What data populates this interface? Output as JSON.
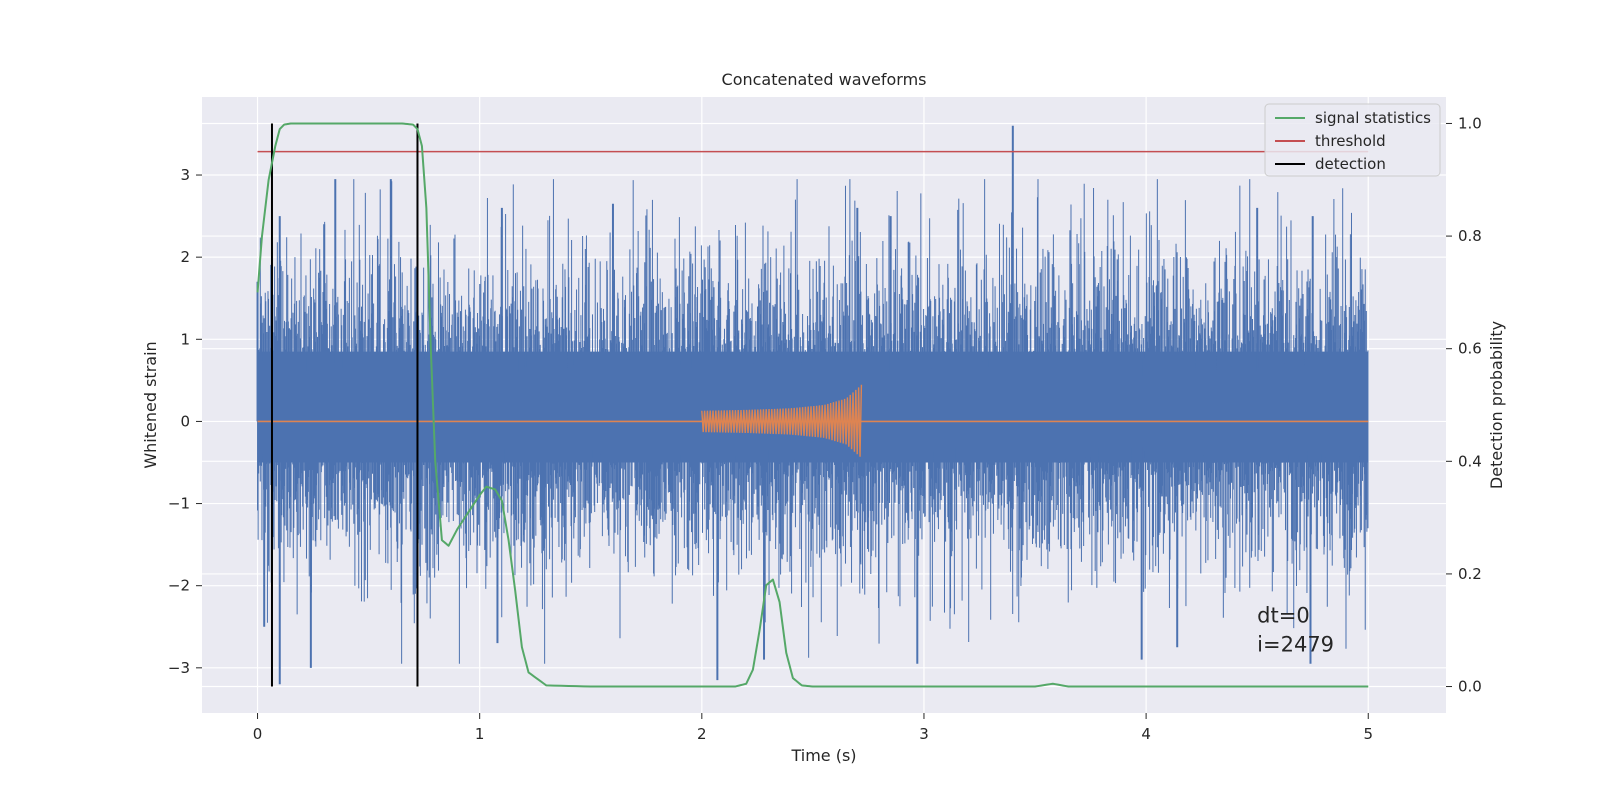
{
  "chart_data": {
    "type": "line",
    "title": "Concatenated waveforms",
    "xlabel": "Time (s)",
    "ylabel": "Whitened strain",
    "ylabel_right": "Detection probability",
    "xlim": [
      -0.25,
      5.35
    ],
    "ylim": [
      -3.55,
      3.95
    ],
    "ylim_right": [
      -0.047,
      1.047
    ],
    "xticks": [
      0,
      1,
      2,
      3,
      4,
      5
    ],
    "xtick_labels": [
      "0",
      "1",
      "2",
      "3",
      "4",
      "5"
    ],
    "yticks": [
      -3,
      -2,
      -1,
      0,
      1,
      2,
      3
    ],
    "ytick_labels": [
      "−3",
      "−2",
      "−1",
      "0",
      "1",
      "2",
      "3"
    ],
    "yticks_right": [
      0.0,
      0.2,
      0.4,
      0.6,
      0.8,
      1.0
    ],
    "ytick_right_labels": [
      "0.0",
      "0.2",
      "0.4",
      "0.6",
      "0.8",
      "1.0"
    ],
    "grid": true,
    "legend_position": "top-right",
    "colors": {
      "strain": "#4c72b0",
      "injection": "#dd8452",
      "signal_statistics": "#55a868",
      "threshold": "#c44e52",
      "detection": "#000000",
      "background": "#eaeaf2",
      "grid": "#ffffff"
    },
    "series": [
      {
        "name": "",
        "axis": "left",
        "kind": "noise-band",
        "x_range": [
          0,
          5
        ],
        "core_band": [
          -0.5,
          0.85
        ],
        "peaks": [
          {
            "x": 0.0,
            "y": 1.7
          },
          {
            "x": 0.1,
            "y": 2.5
          },
          {
            "x": 0.3,
            "y": 2.4
          },
          {
            "x": 0.35,
            "y": 2.95
          },
          {
            "x": 0.6,
            "y": 2.95
          },
          {
            "x": 1.1,
            "y": 2.6
          },
          {
            "x": 1.6,
            "y": 2.65
          },
          {
            "x": 2.7,
            "y": 2.6
          },
          {
            "x": 2.85,
            "y": 2.5
          },
          {
            "x": 3.4,
            "y": 3.6
          },
          {
            "x": 4.5,
            "y": 2.6
          },
          {
            "x": 4.75,
            "y": 2.5
          }
        ],
        "troughs": [
          {
            "x": 0.03,
            "y": -2.5
          },
          {
            "x": 0.1,
            "y": -3.2
          },
          {
            "x": 0.24,
            "y": -3.0
          },
          {
            "x": 1.08,
            "y": -2.7
          },
          {
            "x": 2.07,
            "y": -3.15
          },
          {
            "x": 2.28,
            "y": -2.9
          },
          {
            "x": 2.97,
            "y": -2.95
          },
          {
            "x": 3.98,
            "y": -2.9
          },
          {
            "x": 4.14,
            "y": -2.75
          },
          {
            "x": 4.74,
            "y": -2.95
          }
        ]
      },
      {
        "name": "",
        "axis": "left",
        "kind": "chirp",
        "x": [
          2.0,
          2.72
        ],
        "flat": [
          0.0,
          0.0
        ],
        "envelope": [
          {
            "x": 2.0,
            "y": 0.13
          },
          {
            "x": 2.2,
            "y": 0.14
          },
          {
            "x": 2.4,
            "y": 0.16
          },
          {
            "x": 2.55,
            "y": 0.2
          },
          {
            "x": 2.65,
            "y": 0.28
          },
          {
            "x": 2.7,
            "y": 0.4
          },
          {
            "x": 2.72,
            "y": 0.45
          }
        ]
      },
      {
        "name": "signal statistics",
        "axis": "right",
        "x": [
          0.0,
          0.02,
          0.05,
          0.08,
          0.1,
          0.12,
          0.15,
          0.2,
          0.3,
          0.5,
          0.65,
          0.7,
          0.72,
          0.74,
          0.76,
          0.78,
          0.8,
          0.83,
          0.86,
          0.9,
          0.95,
          1.0,
          1.03,
          1.07,
          1.1,
          1.13,
          1.16,
          1.19,
          1.22,
          1.3,
          1.5,
          2.0,
          2.15,
          2.2,
          2.23,
          2.26,
          2.29,
          2.32,
          2.35,
          2.38,
          2.41,
          2.45,
          2.5,
          3.0,
          3.5,
          3.58,
          3.65,
          4.0,
          5.0
        ],
        "values": [
          0.7,
          0.8,
          0.9,
          0.96,
          0.99,
          0.998,
          1.0,
          1.0,
          1.0,
          1.0,
          1.0,
          0.998,
          0.99,
          0.96,
          0.85,
          0.6,
          0.4,
          0.26,
          0.25,
          0.28,
          0.31,
          0.34,
          0.355,
          0.35,
          0.33,
          0.26,
          0.17,
          0.07,
          0.025,
          0.002,
          0.0,
          0.0,
          0.0,
          0.005,
          0.03,
          0.1,
          0.18,
          0.19,
          0.15,
          0.06,
          0.015,
          0.002,
          0.0,
          0.0,
          0.0,
          0.005,
          0.0,
          0.0,
          0.0
        ]
      },
      {
        "name": "threshold",
        "axis": "right",
        "x": [
          0.0,
          5.0
        ],
        "values": [
          0.95,
          0.95
        ]
      },
      {
        "name": "detection",
        "axis": "right",
        "x_positions": [
          0.065,
          0.72
        ],
        "y_range": [
          0.0,
          1.0
        ]
      }
    ],
    "annotations": [
      {
        "id": "dt",
        "text": "dt=0",
        "x": 4.5,
        "y": -2.45
      },
      {
        "id": "i",
        "text": "i=2479",
        "x": 4.5,
        "y": -2.8
      }
    ]
  }
}
